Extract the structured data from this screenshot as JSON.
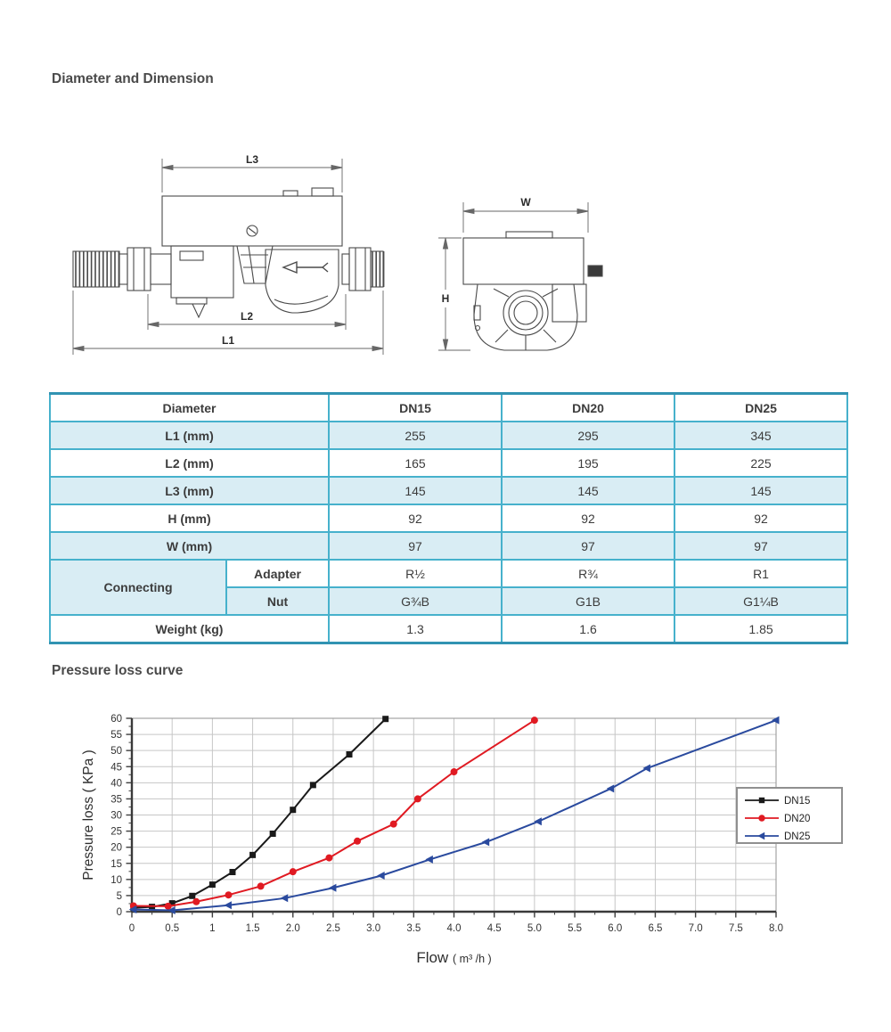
{
  "page": {
    "section1_title": "Diameter and Dimension",
    "section2_title": "Pressure loss curve"
  },
  "drawings": {
    "side_view": {
      "dim_l3": "L3",
      "dim_l2": "L2",
      "dim_l1": "L1"
    },
    "front_view": {
      "dim_w": "W",
      "dim_h": "H"
    }
  },
  "table": {
    "columns": [
      "Diameter",
      "DN15",
      "DN20",
      "DN25"
    ],
    "rows": [
      {
        "label": "L1 (mm)",
        "values": [
          "255",
          "295",
          "345"
        ]
      },
      {
        "label": "L2 (mm)",
        "values": [
          "165",
          "195",
          "225"
        ]
      },
      {
        "label": "L3 (mm)",
        "values": [
          "145",
          "145",
          "145"
        ]
      },
      {
        "label": "H (mm)",
        "values": [
          "92",
          "92",
          "92"
        ]
      },
      {
        "label": "W (mm)",
        "values": [
          "97",
          "97",
          "97"
        ]
      }
    ],
    "connecting": {
      "label": "Connecting",
      "adapter": {
        "label": "Adapter",
        "values": [
          "R½",
          "R¾",
          "R1"
        ]
      },
      "nut": {
        "label": "Nut",
        "values": [
          "G¾B",
          "G1B",
          "G1¼B"
        ]
      }
    },
    "weight": {
      "label": "Weight (kg)",
      "values": [
        "1.3",
        "1.6",
        "1.85"
      ]
    }
  },
  "chart_data": {
    "type": "line",
    "title": "",
    "xlabel": "Flow ( m³ /h )",
    "ylabel": "Pressure loss ( KPa )",
    "xlim": [
      0,
      8
    ],
    "ylim": [
      0,
      60
    ],
    "x_major_step": 0.5,
    "x_minor_step": 0.25,
    "y_major_step": 5,
    "y_minor_step": 2.5,
    "x_tick_labels": [
      "0",
      "0.5",
      "1",
      "1.5",
      "2.0",
      "2.5",
      "3.0",
      "3.5",
      "4.0",
      "4.5",
      "5.0",
      "5.5",
      "6.0",
      "6.5",
      "7.0",
      "7.5",
      "8.0"
    ],
    "y_tick_labels": [
      "0",
      "5",
      "10",
      "15",
      "20",
      "25",
      "30",
      "35",
      "40",
      "45",
      "50",
      "55",
      "60"
    ],
    "grid": true,
    "legend_position": "right-middle",
    "series": [
      {
        "name": "DN15",
        "color": "#1a1a1a",
        "marker": "square",
        "x": [
          0.02,
          0.25,
          0.5,
          0.75,
          1.0,
          1.25,
          1.5,
          1.75,
          2.0,
          2.25,
          2.7,
          3.15
        ],
        "y": [
          1.2,
          1.5,
          2.6,
          4.9,
          8.4,
          12.3,
          17.6,
          24.2,
          31.6,
          39.3,
          48.8,
          59.8
        ]
      },
      {
        "name": "DN20",
        "color": "#e01a22",
        "marker": "circle",
        "x": [
          0.02,
          0.45,
          0.8,
          1.2,
          1.6,
          2.0,
          2.45,
          2.8,
          3.25,
          3.55,
          4.0,
          5.0
        ],
        "y": [
          1.8,
          1.7,
          3.1,
          5.2,
          7.9,
          12.4,
          16.7,
          21.9,
          27.2,
          35.0,
          43.4,
          59.4
        ]
      },
      {
        "name": "DN25",
        "color": "#2a4a9e",
        "marker": "triangle-left",
        "x": [
          0.02,
          0.5,
          1.2,
          1.9,
          2.5,
          3.1,
          3.7,
          4.4,
          5.05,
          5.95,
          6.4,
          8.0
        ],
        "y": [
          0.7,
          0.4,
          2.0,
          4.2,
          7.4,
          11.2,
          16.2,
          21.6,
          28.0,
          38.2,
          44.5,
          59.4
        ]
      }
    ],
    "grid_color": "#c6c6c6",
    "axis_color": "#3a3a3a"
  },
  "colors": {
    "table_border": "#46b1cc",
    "table_outer_border": "#3193b2",
    "table_row_fill": "#d9edf4",
    "heading_text": "#4a4a4a"
  }
}
